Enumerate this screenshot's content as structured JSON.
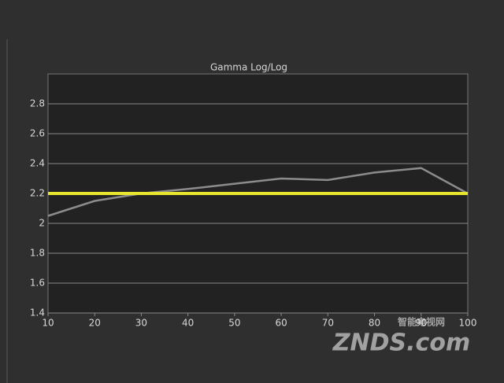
{
  "chart_data": {
    "type": "line",
    "title": "Gamma Log/Log",
    "x": [
      10,
      20,
      30,
      40,
      50,
      60,
      70,
      80,
      90,
      100
    ],
    "series": [
      {
        "color": "#8c8c8c",
        "values": [
          2.05,
          2.15,
          2.2,
          2.23,
          2.265,
          2.3,
          2.29,
          2.34,
          2.37,
          2.2
        ]
      },
      {
        "color": "#e6e62e",
        "values": [
          2.2,
          2.2,
          2.2,
          2.2,
          2.2,
          2.2,
          2.2,
          2.2,
          2.2,
          2.2
        ]
      }
    ],
    "xlim": [
      10,
      100
    ],
    "xticks": [
      10,
      20,
      30,
      40,
      50,
      60,
      70,
      80,
      90,
      100
    ],
    "ylim": [
      1.4,
      3.0
    ],
    "yticks": [
      1.4,
      1.6,
      1.8,
      2,
      2.2,
      2.4,
      2.6,
      2.8
    ],
    "grid": true
  },
  "watermark": {
    "brand": "ZNDS.com",
    "site": "智能电视网"
  }
}
